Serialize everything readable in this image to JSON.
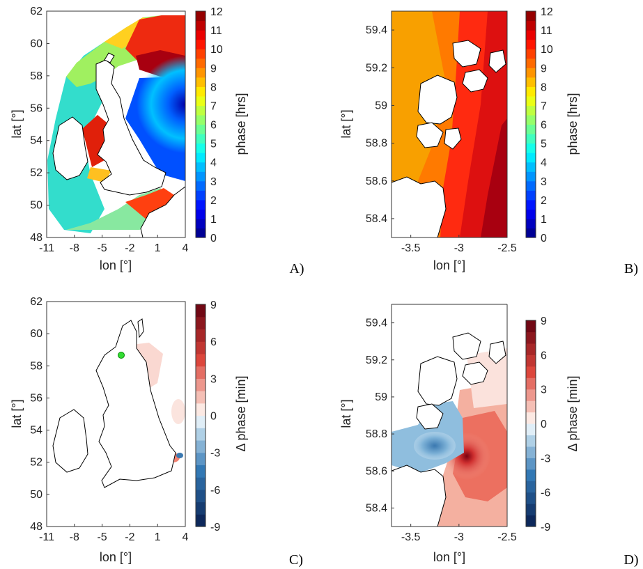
{
  "panels": [
    {
      "id": "A",
      "panel_label": "A)",
      "xlabel": "lon [°]",
      "ylabel": "lat [°]",
      "cbar_label": "phase [hrs]",
      "xticks": [
        "-11",
        "-8",
        "-5",
        "-2",
        "1",
        "4"
      ],
      "yticks": [
        "48",
        "50",
        "52",
        "54",
        "56",
        "58",
        "60",
        "62"
      ],
      "cbar_ticks": [
        "0",
        "1",
        "2",
        "3",
        "4",
        "5",
        "6",
        "7",
        "8",
        "9",
        "10",
        "11",
        "12"
      ]
    },
    {
      "id": "B",
      "panel_label": "B)",
      "xlabel": "lon [°]",
      "ylabel": "lat [°]",
      "cbar_label": "phase [hrs]",
      "xticks": [
        "-3.5",
        "-3",
        "-2.5"
      ],
      "yticks": [
        "58.4",
        "58.6",
        "58.8",
        "59",
        "59.2",
        "59.4"
      ],
      "cbar_ticks": [
        "0",
        "1",
        "2",
        "3",
        "4",
        "5",
        "6",
        "7",
        "8",
        "9",
        "10",
        "11",
        "12"
      ]
    },
    {
      "id": "C",
      "panel_label": "C)",
      "xlabel": "lon [°]",
      "ylabel": "lat [°]",
      "cbar_label": "Δ phase [min]",
      "xticks": [
        "-11",
        "-8",
        "-5",
        "-2",
        "1",
        "4"
      ],
      "yticks": [
        "48",
        "50",
        "52",
        "54",
        "56",
        "58",
        "60",
        "62"
      ],
      "cbar_ticks": [
        "-9",
        "-6",
        "-3",
        "0",
        "3",
        "6",
        "9"
      ]
    },
    {
      "id": "D",
      "panel_label": "D)",
      "xlabel": "lon [°]",
      "ylabel": "lat [°]",
      "cbar_label": "Δ phase [min]",
      "xticks": [
        "-3.5",
        "-3",
        "-2.5"
      ],
      "yticks": [
        "58.4",
        "58.6",
        "58.8",
        "59",
        "59.2",
        "59.4"
      ],
      "cbar_ticks": [
        "-9",
        "-6",
        "-3",
        "0",
        "3",
        "6",
        "9"
      ]
    }
  ],
  "chart_data": [
    {
      "type": "heatmap",
      "panel": "A",
      "xlabel": "lon [°]",
      "ylabel": "lat [°]",
      "xlim": [
        -11,
        4
      ],
      "ylim": [
        48,
        62
      ],
      "colorbar": {
        "label": "phase [hrs]",
        "range": [
          0,
          12
        ],
        "colormap": "jet",
        "levels": 24
      },
      "grid": false
    },
    {
      "type": "heatmap",
      "panel": "B",
      "xlabel": "lon [°]",
      "ylabel": "lat [°]",
      "xlim": [
        -3.7,
        -2.5
      ],
      "ylim": [
        58.3,
        59.5
      ],
      "colorbar": {
        "label": "phase [hrs]",
        "range": [
          0,
          12
        ],
        "colormap": "jet",
        "levels": 24
      },
      "grid": false
    },
    {
      "type": "heatmap",
      "panel": "C",
      "xlabel": "lon [°]",
      "ylabel": "lat [°]",
      "xlim": [
        -11,
        4
      ],
      "ylim": [
        48,
        62
      ],
      "colorbar": {
        "label": "Δ phase [min]",
        "range": [
          -9,
          9
        ],
        "colormap": "diverging blue-white-red",
        "levels": 18
      },
      "marker": {
        "lon": -3.0,
        "lat": 58.7,
        "color": "#33dd33"
      },
      "grid": false
    },
    {
      "type": "heatmap",
      "panel": "D",
      "xlabel": "lon [°]",
      "ylabel": "lat [°]",
      "xlim": [
        -3.7,
        -2.5
      ],
      "ylim": [
        58.3,
        59.5
      ],
      "colorbar": {
        "label": "Δ phase [min]",
        "range": [
          -9,
          9
        ],
        "colormap": "diverging blue-white-red",
        "levels": 18
      },
      "grid": false
    }
  ]
}
